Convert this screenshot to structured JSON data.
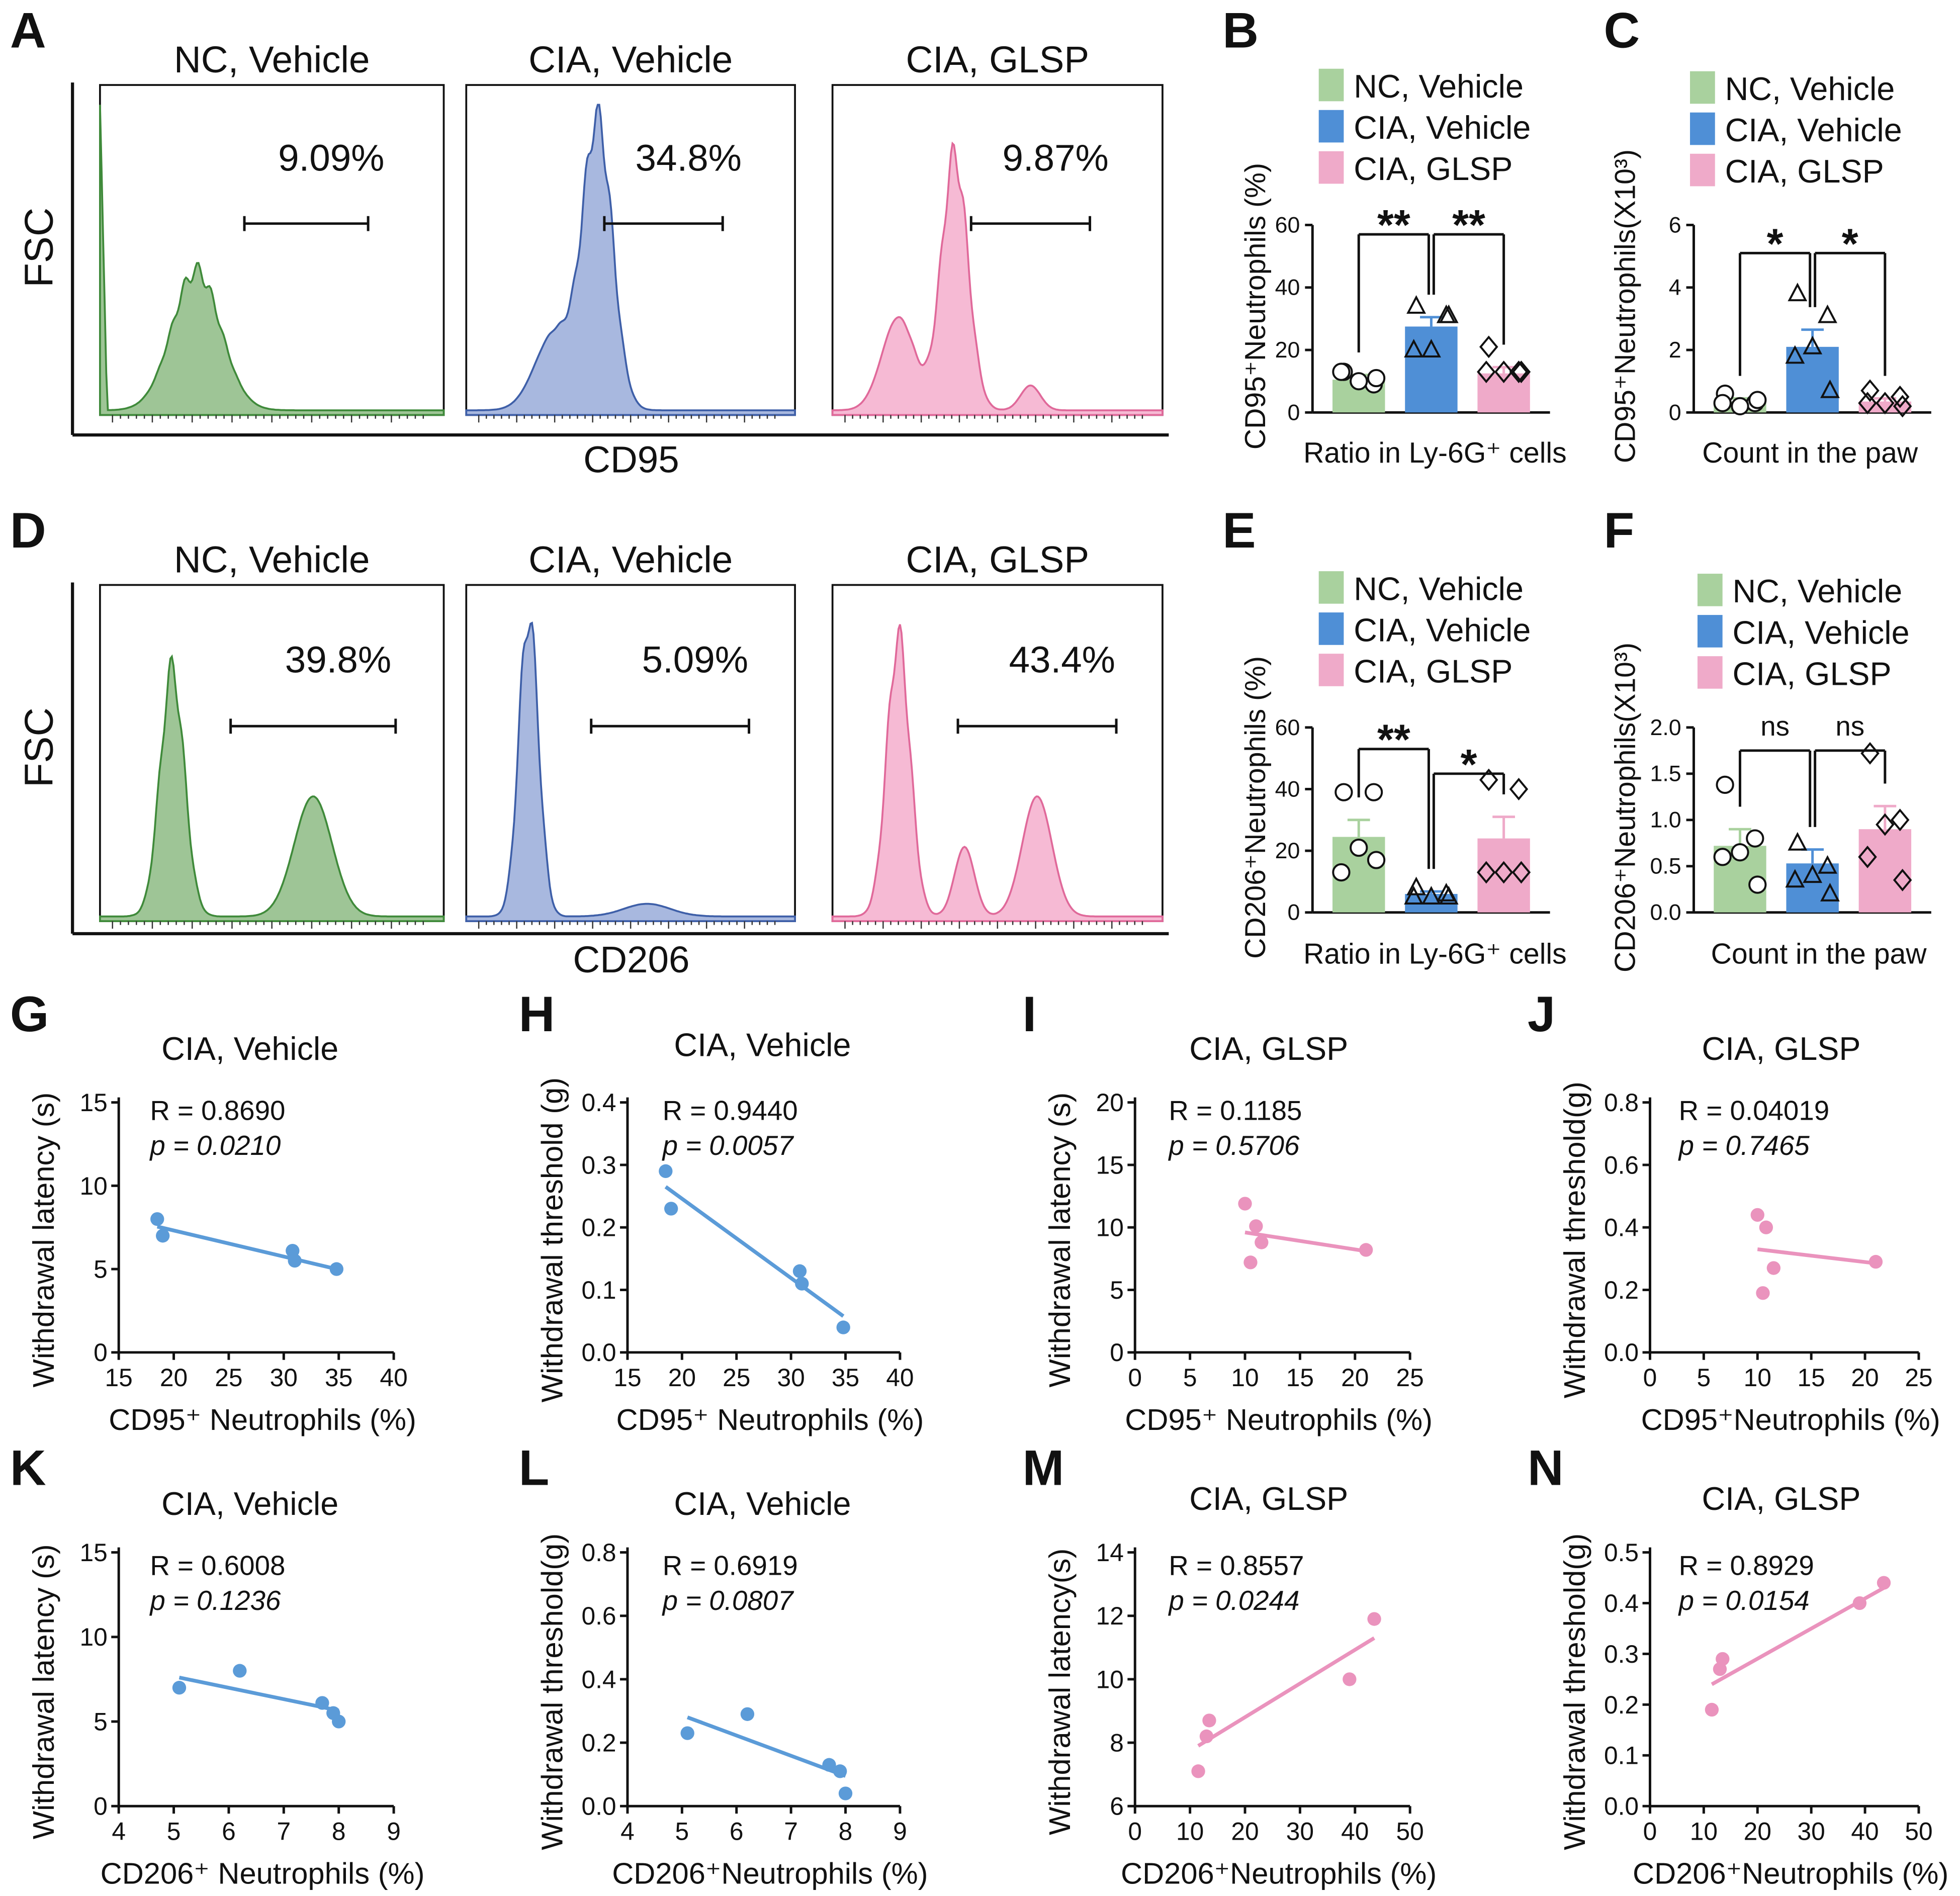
{
  "colors": {
    "nc": "#a9d19e",
    "nc_line": "#3f8a3a",
    "nc_fill": "#93bf8b",
    "cia": "#4f8fd6",
    "cia_line": "#3e5fa8",
    "cia_fill": "#9fb0db",
    "glsp": "#efaac9",
    "glsp_line": "#e0699a",
    "glsp_fill": "#f5b3cf",
    "scatter_blue": "#5b9bd8",
    "scatter_pink": "#ea93bd"
  },
  "groups": [
    "NC, Vehicle",
    "CIA, Vehicle",
    "CIA, GLSP"
  ],
  "flow": [
    {
      "letter": "A",
      "xlabel": "CD95",
      "ylabel": "FSC",
      "histos": [
        {
          "title": "NC, Vehicle",
          "pct": "9.09%",
          "color": "nc",
          "peaks": [
            [
              0.28,
              0.45,
              0.07
            ]
          ],
          "gate": [
            0.42,
            0.78
          ],
          "spike": true
        },
        {
          "title": "CIA, Vehicle",
          "pct": "34.8%",
          "color": "cia",
          "peaks": [
            [
              0.4,
              0.92,
              0.045
            ],
            [
              0.27,
              0.25,
              0.06
            ]
          ],
          "gate": [
            0.42,
            0.78
          ],
          "spike": false
        },
        {
          "title": "CIA, GLSP",
          "pct": "9.87%",
          "color": "glsp",
          "peaks": [
            [
              0.37,
              0.82,
              0.04
            ],
            [
              0.2,
              0.3,
              0.05
            ],
            [
              0.6,
              0.08,
              0.03
            ]
          ],
          "gate": [
            0.42,
            0.78
          ],
          "spike": false
        }
      ]
    },
    {
      "letter": "D",
      "xlabel": "CD206",
      "ylabel": "FSC",
      "histos": [
        {
          "title": "NC, Vehicle",
          "pct": "39.8%",
          "color": "nc",
          "peaks": [
            [
              0.21,
              0.78,
              0.035
            ],
            [
              0.62,
              0.38,
              0.055
            ]
          ],
          "gate": [
            0.38,
            0.86
          ],
          "spike": false
        },
        {
          "title": "CIA, Vehicle",
          "pct": "5.09%",
          "color": "cia",
          "peaks": [
            [
              0.19,
              0.95,
              0.03
            ],
            [
              0.55,
              0.04,
              0.07
            ]
          ],
          "gate": [
            0.38,
            0.86
          ],
          "spike": false
        },
        {
          "title": "CIA, GLSP",
          "pct": "43.4%",
          "color": "glsp",
          "peaks": [
            [
              0.2,
              0.88,
              0.035
            ],
            [
              0.4,
              0.22,
              0.03
            ],
            [
              0.62,
              0.38,
              0.045
            ]
          ],
          "gate": [
            0.38,
            0.86
          ],
          "spike": false
        }
      ]
    }
  ],
  "chart_data": [
    {
      "panel": "B",
      "type": "bar",
      "ylabel": "CD95⁺Neutrophils (%)",
      "xlabel": "Ratio in Ly-6G⁺ cells",
      "ylim": [
        0,
        60
      ],
      "yticks": [
        0,
        20,
        40,
        60
      ],
      "ytick_labels": [
        "0",
        "20",
        "40",
        "60"
      ],
      "categories": [
        "NC, Vehicle",
        "CIA, Vehicle",
        "CIA, GLSP"
      ],
      "values": [
        10.5,
        27.5,
        12.5
      ],
      "sem": [
        1.5,
        3,
        2
      ],
      "points": [
        [
          13,
          9,
          10,
          13,
          11
        ],
        [
          34,
          31,
          20,
          20,
          31
        ],
        [
          21,
          13,
          13,
          13,
          13
        ]
      ],
      "sig": [
        {
          "from": 0,
          "to": 1,
          "label": "**",
          "y": 57
        },
        {
          "from": 1,
          "to": 2,
          "label": "**",
          "y": 57
        }
      ]
    },
    {
      "panel": "C",
      "type": "bar",
      "ylabel": "CD95⁺Neutrophils(X10³)",
      "xlabel": "Count in the paw",
      "ylim": [
        0,
        6
      ],
      "yticks": [
        0,
        2,
        4,
        6
      ],
      "ytick_labels": [
        "0",
        "2",
        "4",
        "6"
      ],
      "categories": [
        "NC, Vehicle",
        "CIA, Vehicle",
        "CIA, GLSP"
      ],
      "values": [
        0.35,
        2.1,
        0.35
      ],
      "sem": [
        0.1,
        0.55,
        0.1
      ],
      "points": [
        [
          0.6,
          0.3,
          0.2,
          0.3,
          0.4
        ],
        [
          3.8,
          3.1,
          2.1,
          1.8,
          0.7
        ],
        [
          0.7,
          0.5,
          0.3,
          0.3,
          0.2
        ]
      ],
      "sig": [
        {
          "from": 0,
          "to": 1,
          "label": "*",
          "y": 5.1
        },
        {
          "from": 1,
          "to": 2,
          "label": "*",
          "y": 5.1
        }
      ]
    },
    {
      "panel": "E",
      "type": "bar",
      "ylabel": "CD206⁺Neutrophils (%)",
      "xlabel": "Ratio in Ly-6G⁺ cells",
      "ylim": [
        0,
        60
      ],
      "yticks": [
        0,
        20,
        40,
        60
      ],
      "ytick_labels": [
        "0",
        "20",
        "40",
        "60"
      ],
      "categories": [
        "NC, Vehicle",
        "CIA, Vehicle",
        "CIA, GLSP"
      ],
      "values": [
        24.5,
        6,
        24
      ],
      "sem": [
        5.5,
        0.8,
        7
      ],
      "points": [
        [
          39,
          39,
          21,
          13,
          17
        ],
        [
          8,
          6,
          5,
          5,
          5
        ],
        [
          43,
          40,
          13,
          13,
          13
        ]
      ],
      "sig": [
        {
          "from": 0,
          "to": 1,
          "label": "**",
          "y": 53
        },
        {
          "from": 1,
          "to": 2,
          "label": "*",
          "y": 45
        }
      ]
    },
    {
      "panel": "F",
      "type": "bar",
      "ylabel": "CD206⁺Neutrophils(X10³)",
      "xlabel": "Count in the paw",
      "ylim": [
        0,
        2
      ],
      "yticks": [
        0,
        0.5,
        1,
        1.5,
        2
      ],
      "ytick_labels": [
        "0.0",
        "0.5",
        "1.0",
        "1.5",
        "2.0"
      ],
      "categories": [
        "NC, Vehicle",
        "CIA, Vehicle",
        "CIA, GLSP"
      ],
      "values": [
        0.72,
        0.53,
        0.9
      ],
      "sem": [
        0.18,
        0.15,
        0.25
      ],
      "points": [
        [
          1.38,
          0.8,
          0.65,
          0.6,
          0.3
        ],
        [
          0.75,
          0.5,
          0.4,
          0.35,
          0.2
        ],
        [
          1.72,
          1.0,
          0.95,
          0.6,
          0.35
        ]
      ],
      "sig": [
        {
          "from": 0,
          "to": 1,
          "label": "ns",
          "y": 1.75
        },
        {
          "from": 1,
          "to": 2,
          "label": "ns",
          "y": 1.75
        }
      ]
    },
    {
      "panel": "G",
      "type": "scatter",
      "title": "CIA, Vehicle",
      "xlabel": "CD95⁺ Neutrophils (%)",
      "ylabel": "Withdrawal latency (s)",
      "color": "scatter_blue",
      "R": "R = 0.8690",
      "p": "p = 0.0210",
      "xlim": [
        15,
        40
      ],
      "xticks": [
        15,
        20,
        25,
        30,
        35,
        40
      ],
      "xtick_labels": [
        "15",
        "20",
        "25",
        "30",
        "35",
        "40"
      ],
      "ylim": [
        0,
        15
      ],
      "yticks": [
        0,
        5,
        10,
        15
      ],
      "ytick_labels": [
        "0",
        "5",
        "10",
        "15"
      ],
      "x": [
        18.5,
        19,
        30.8,
        31,
        34.8
      ],
      "y": [
        8,
        7,
        6.1,
        5.5,
        5
      ],
      "fit": [
        [
          18.5,
          7.55
        ],
        [
          34.8,
          5.0
        ]
      ]
    },
    {
      "panel": "H",
      "type": "scatter",
      "title": "CIA, Vehicle",
      "xlabel": "CD95⁺ Neutrophils (%)",
      "ylabel": "Withdrawal threshold (g)",
      "color": "scatter_blue",
      "R": "R = 0.9440",
      "p": "p = 0.0057",
      "xlim": [
        15,
        40
      ],
      "xticks": [
        15,
        20,
        25,
        30,
        35,
        40
      ],
      "xtick_labels": [
        "15",
        "20",
        "25",
        "30",
        "35",
        "40"
      ],
      "ylim": [
        0,
        0.4
      ],
      "yticks": [
        0,
        0.1,
        0.2,
        0.3,
        0.4
      ],
      "ytick_labels": [
        "0.0",
        "0.1",
        "0.2",
        "0.3",
        "0.4"
      ],
      "x": [
        18.5,
        19,
        30.8,
        31,
        34.8
      ],
      "y": [
        0.29,
        0.23,
        0.13,
        0.11,
        0.04
      ],
      "fit": [
        [
          18.5,
          0.265
        ],
        [
          34.8,
          0.058
        ]
      ]
    },
    {
      "panel": "I",
      "type": "scatter",
      "title": "CIA, GLSP",
      "xlabel": "CD95⁺ Neutrophils (%)",
      "ylabel": "Withdrawal latency (s)",
      "color": "scatter_pink",
      "R": "R = 0.1185",
      "p": "p = 0.5706",
      "xlim": [
        0,
        25
      ],
      "xticks": [
        0,
        5,
        10,
        15,
        20,
        25
      ],
      "xtick_labels": [
        "0",
        "5",
        "10",
        "15",
        "20",
        "25"
      ],
      "ylim": [
        0,
        20
      ],
      "yticks": [
        0,
        5,
        10,
        15,
        20
      ],
      "ytick_labels": [
        "0",
        "5",
        "10",
        "15",
        "20"
      ],
      "x": [
        10,
        10.5,
        11,
        11.5,
        21
      ],
      "y": [
        11.9,
        7.2,
        10.1,
        8.8,
        8.2
      ],
      "fit": [
        [
          10,
          9.6
        ],
        [
          21,
          8.1
        ]
      ]
    },
    {
      "panel": "J",
      "type": "scatter",
      "title": "CIA, GLSP",
      "xlabel": "CD95⁺Neutrophils (%)",
      "ylabel": "Withdrawal threshold(g)",
      "color": "scatter_pink",
      "R": "R = 0.04019",
      "p": "p = 0.7465",
      "xlim": [
        0,
        25
      ],
      "xticks": [
        0,
        5,
        10,
        15,
        20,
        25
      ],
      "xtick_labels": [
        "0",
        "5",
        "10",
        "15",
        "20",
        "25"
      ],
      "ylim": [
        0,
        0.8
      ],
      "yticks": [
        0,
        0.2,
        0.4,
        0.6,
        0.8
      ],
      "ytick_labels": [
        "0.0",
        "0.2",
        "0.4",
        "0.6",
        "0.8"
      ],
      "x": [
        10,
        10.5,
        10.8,
        11.5,
        21
      ],
      "y": [
        0.44,
        0.19,
        0.4,
        0.27,
        0.29
      ],
      "fit": [
        [
          10,
          0.33
        ],
        [
          21,
          0.285
        ]
      ]
    },
    {
      "panel": "K",
      "type": "scatter",
      "title": "CIA, Vehicle",
      "xlabel": "CD206⁺ Neutrophils (%)",
      "ylabel": "Withdrawal latency (s)",
      "color": "scatter_blue",
      "R": "R = 0.6008",
      "p": "p = 0.1236",
      "xlim": [
        4,
        9
      ],
      "xticks": [
        4,
        5,
        6,
        7,
        8,
        9
      ],
      "xtick_labels": [
        "4",
        "5",
        "6",
        "7",
        "8",
        "9"
      ],
      "ylim": [
        0,
        15
      ],
      "yticks": [
        0,
        5,
        10,
        15
      ],
      "ytick_labels": [
        "0",
        "5",
        "10",
        "15"
      ],
      "x": [
        5.1,
        6.2,
        7.7,
        7.9,
        8.0
      ],
      "y": [
        7,
        8,
        6.1,
        5.5,
        5
      ],
      "fit": [
        [
          5.1,
          7.6
        ],
        [
          8.0,
          5.65
        ]
      ]
    },
    {
      "panel": "L",
      "type": "scatter",
      "title": "CIA, Vehicle",
      "xlabel": "CD206⁺Neutrophils (%)",
      "ylabel": "Withdrawal threshold(g)",
      "color": "scatter_blue",
      "R": "R = 0.6919",
      "p": "p = 0.0807",
      "xlim": [
        4,
        9
      ],
      "xticks": [
        4,
        5,
        6,
        7,
        8,
        9
      ],
      "xtick_labels": [
        "4",
        "5",
        "6",
        "7",
        "8",
        "9"
      ],
      "ylim": [
        0,
        0.8
      ],
      "yticks": [
        0,
        0.2,
        0.4,
        0.6,
        0.8
      ],
      "ytick_labels": [
        "0.0",
        "0.2",
        "0.4",
        "0.6",
        "0.8"
      ],
      "x": [
        5.1,
        6.2,
        7.7,
        7.9,
        8.0
      ],
      "y": [
        0.23,
        0.29,
        0.13,
        0.11,
        0.04
      ],
      "fit": [
        [
          5.1,
          0.28
        ],
        [
          8.0,
          0.095
        ]
      ]
    },
    {
      "panel": "M",
      "type": "scatter",
      "title": "CIA, GLSP",
      "xlabel": "CD206⁺Neutrophils (%)",
      "ylabel": "Withdrawal latency(s)",
      "color": "scatter_pink",
      "R": "R = 0.8557",
      "p": "p = 0.0244",
      "xlim": [
        0,
        50
      ],
      "xticks": [
        0,
        10,
        20,
        30,
        40,
        50
      ],
      "xtick_labels": [
        "0",
        "10",
        "20",
        "30",
        "40",
        "50"
      ],
      "ylim": [
        6,
        14
      ],
      "yticks": [
        6,
        8,
        10,
        12,
        14
      ],
      "ytick_labels": [
        "6",
        "8",
        "10",
        "12",
        "14"
      ],
      "x": [
        11.5,
        13,
        13.5,
        39,
        43.5
      ],
      "y": [
        7.1,
        8.2,
        8.7,
        10,
        11.9
      ],
      "fit": [
        [
          11.5,
          7.9
        ],
        [
          43.5,
          11.3
        ]
      ]
    },
    {
      "panel": "N",
      "type": "scatter",
      "title": "CIA, GLSP",
      "xlabel": "CD206⁺Neutrophils (%)",
      "ylabel": "Withdrawal threshold(g)",
      "color": "scatter_pink",
      "R": "R = 0.8929",
      "p": "p = 0.0154",
      "xlim": [
        0,
        50
      ],
      "xticks": [
        0,
        10,
        20,
        30,
        40,
        50
      ],
      "xtick_labels": [
        "0",
        "10",
        "20",
        "30",
        "40",
        "50"
      ],
      "ylim": [
        0,
        0.5
      ],
      "yticks": [
        0,
        0.1,
        0.2,
        0.3,
        0.4,
        0.5
      ],
      "ytick_labels": [
        "0.0",
        "0.1",
        "0.2",
        "0.3",
        "0.4",
        "0.5"
      ],
      "x": [
        11.5,
        13,
        13.5,
        39,
        43.5
      ],
      "y": [
        0.19,
        0.27,
        0.29,
        0.4,
        0.44
      ],
      "fit": [
        [
          11.5,
          0.24
        ],
        [
          43.5,
          0.43
        ]
      ]
    }
  ]
}
